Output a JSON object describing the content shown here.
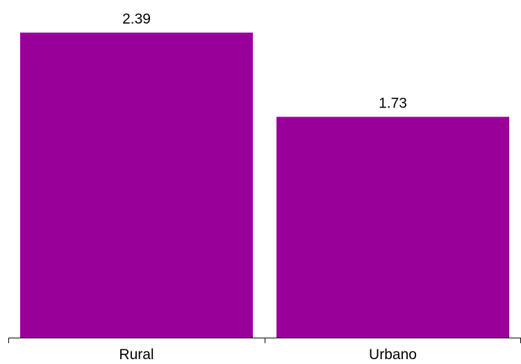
{
  "chart_data": {
    "type": "bar",
    "categories": [
      "Rural",
      "Urbano"
    ],
    "values": [
      2.39,
      1.73
    ],
    "data_labels": [
      "2.39",
      "1.73"
    ],
    "title": "",
    "xlabel": "",
    "ylabel": "",
    "ylim": [
      0,
      2.39
    ],
    "grid": false,
    "legend": "none",
    "colors": {
      "bar": "#990099",
      "axis": "#000000",
      "text": "#000000",
      "background": "#ffffff"
    }
  }
}
